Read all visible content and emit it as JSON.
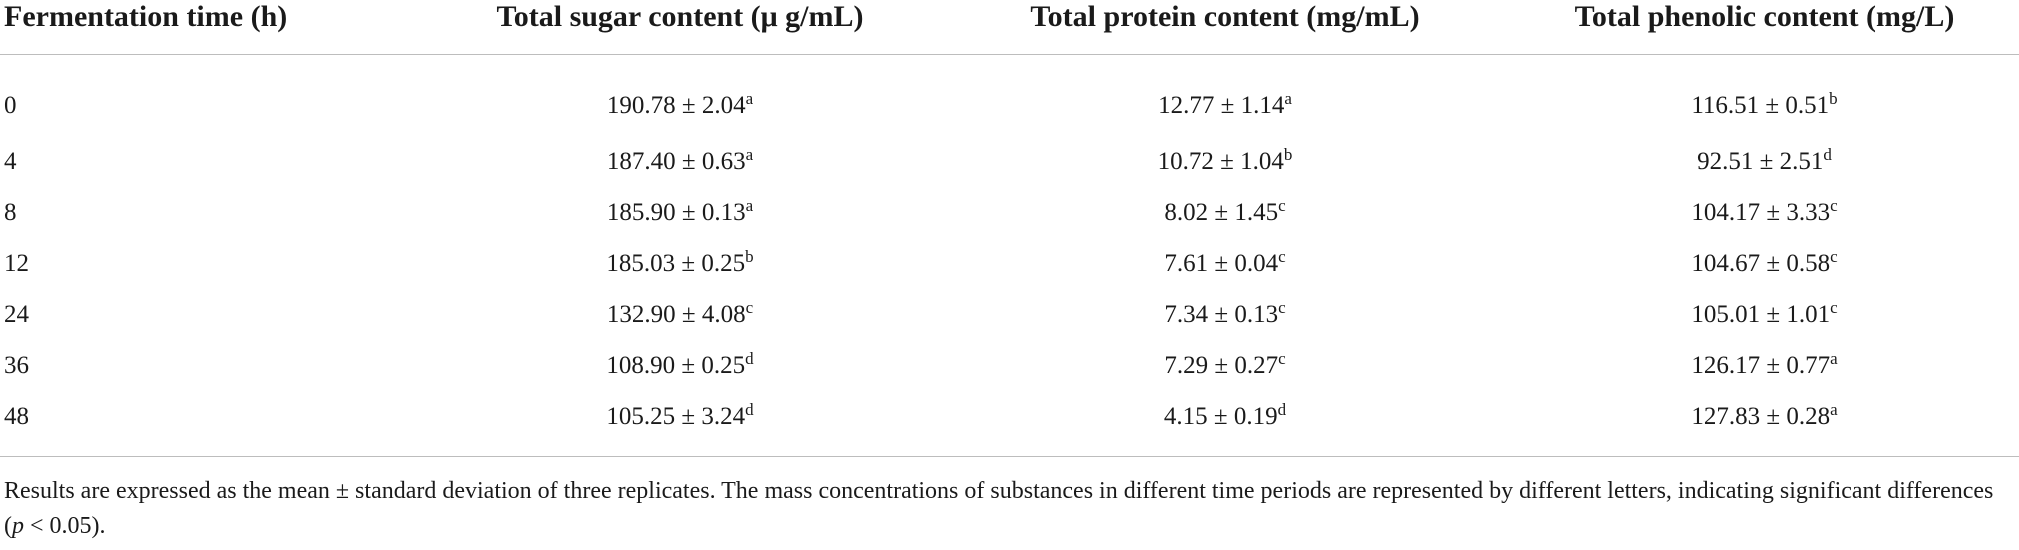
{
  "table": {
    "headers": [
      "Fermentation time (h)",
      "Total sugar content (μ g/mL)",
      "Total protein content (mg/mL)",
      "Total phenolic content (mg/L)"
    ],
    "rows": [
      {
        "time": "0",
        "sugar": "190.78 ± 2.04",
        "sugar_sig": "a",
        "protein": "12.77 ± 1.14",
        "protein_sig": "a",
        "phenolic": "116.51 ± 0.51",
        "phenolic_sig": "b"
      },
      {
        "time": "4",
        "sugar": "187.40 ± 0.63",
        "sugar_sig": "a",
        "protein": "10.72 ± 1.04",
        "protein_sig": "b",
        "phenolic": "92.51 ± 2.51",
        "phenolic_sig": "d"
      },
      {
        "time": "8",
        "sugar": "185.90 ± 0.13",
        "sugar_sig": "a",
        "protein": "8.02 ± 1.45",
        "protein_sig": "c",
        "phenolic": "104.17 ± 3.33",
        "phenolic_sig": "c"
      },
      {
        "time": "12",
        "sugar": "185.03 ± 0.25",
        "sugar_sig": "b",
        "protein": "7.61 ± 0.04",
        "protein_sig": "c",
        "phenolic": "104.67 ± 0.58",
        "phenolic_sig": "c"
      },
      {
        "time": "24",
        "sugar": "132.90 ± 4.08",
        "sugar_sig": "c",
        "protein": "7.34 ± 0.13",
        "protein_sig": "c",
        "phenolic": "105.01 ± 1.01",
        "phenolic_sig": "c"
      },
      {
        "time": "36",
        "sugar": "108.90 ± 0.25",
        "sugar_sig": "d",
        "protein": "7.29 ± 0.27",
        "protein_sig": "c",
        "phenolic": "126.17 ± 0.77",
        "phenolic_sig": "a"
      },
      {
        "time": "48",
        "sugar": "105.25 ± 3.24",
        "sugar_sig": "d",
        "protein": "4.15 ± 0.19",
        "protein_sig": "d",
        "phenolic": "127.83 ± 0.28",
        "phenolic_sig": "a"
      }
    ]
  },
  "note": {
    "text_before": "Results are expressed as the mean ± standard deviation of three replicates. The mass concentrations of substances in different time periods are represented by different letters, indicating significant differences (",
    "p_symbol": "p",
    "text_after": " < 0.05)."
  }
}
